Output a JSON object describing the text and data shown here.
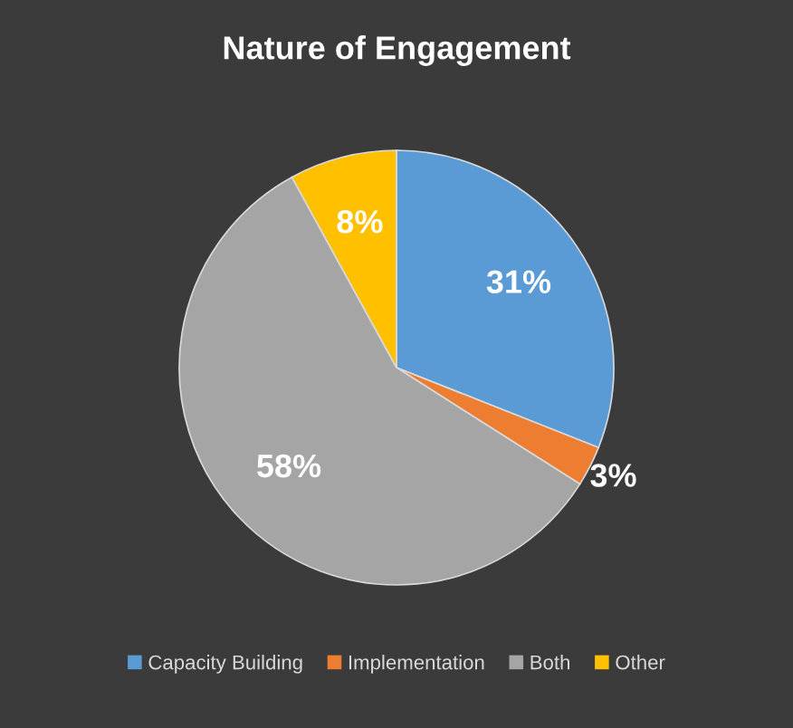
{
  "chart_data": {
    "type": "pie",
    "title": "Nature of Engagement",
    "categories": [
      "Capacity Building",
      "Implementation",
      "Both",
      "Other"
    ],
    "values": [
      31,
      3,
      58,
      8
    ],
    "colors": [
      "#5b9bd5",
      "#ed7d31",
      "#a5a5a5",
      "#ffc000"
    ],
    "value_labels": [
      "31%",
      "3%",
      "58%",
      "8%"
    ],
    "legend": "bottom"
  }
}
